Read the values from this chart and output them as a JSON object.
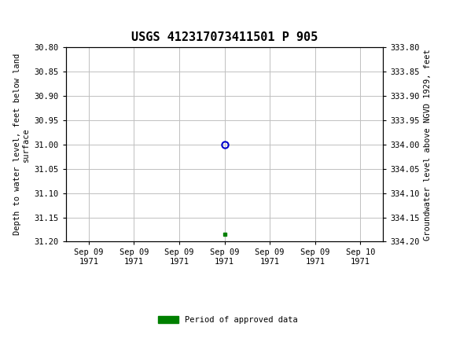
{
  "title": "USGS 412317073411501 P 905",
  "ylabel_left": "Depth to water level, feet below land\nsurface",
  "ylabel_right": "Groundwater level above NGVD 1929, feet",
  "ylim_left": [
    30.8,
    31.2
  ],
  "ylim_right": [
    333.8,
    334.2
  ],
  "yticks_left": [
    30.8,
    30.85,
    30.9,
    30.95,
    31.0,
    31.05,
    31.1,
    31.15,
    31.2
  ],
  "yticks_right": [
    333.8,
    333.85,
    333.9,
    333.95,
    334.0,
    334.05,
    334.1,
    334.15,
    334.2
  ],
  "data_point_x": 3.0,
  "data_point_y": 31.0,
  "data_point_color": "#0000cc",
  "green_marker_x": 3.0,
  "green_marker_y": 31.185,
  "green_marker_color": "#008000",
  "header_bg_color": "#006633",
  "header_text_color": "#ffffff",
  "plot_bg_color": "#ffffff",
  "grid_color": "#c0c0c0",
  "axis_label_fontsize": 7.5,
  "title_fontsize": 11,
  "tick_fontsize": 7.5,
  "legend_label": "Period of approved data",
  "legend_color": "#008000",
  "tick_labels": [
    "Sep 09\n1971",
    "Sep 09\n1971",
    "Sep 09\n1971",
    "Sep 09\n1971",
    "Sep 09\n1971",
    "Sep 09\n1971",
    "Sep 10\n1971"
  ],
  "tick_positions": [
    0,
    1,
    2,
    3,
    4,
    5,
    6
  ],
  "xlim": [
    -0.5,
    6.5
  ],
  "font_family": "monospace"
}
